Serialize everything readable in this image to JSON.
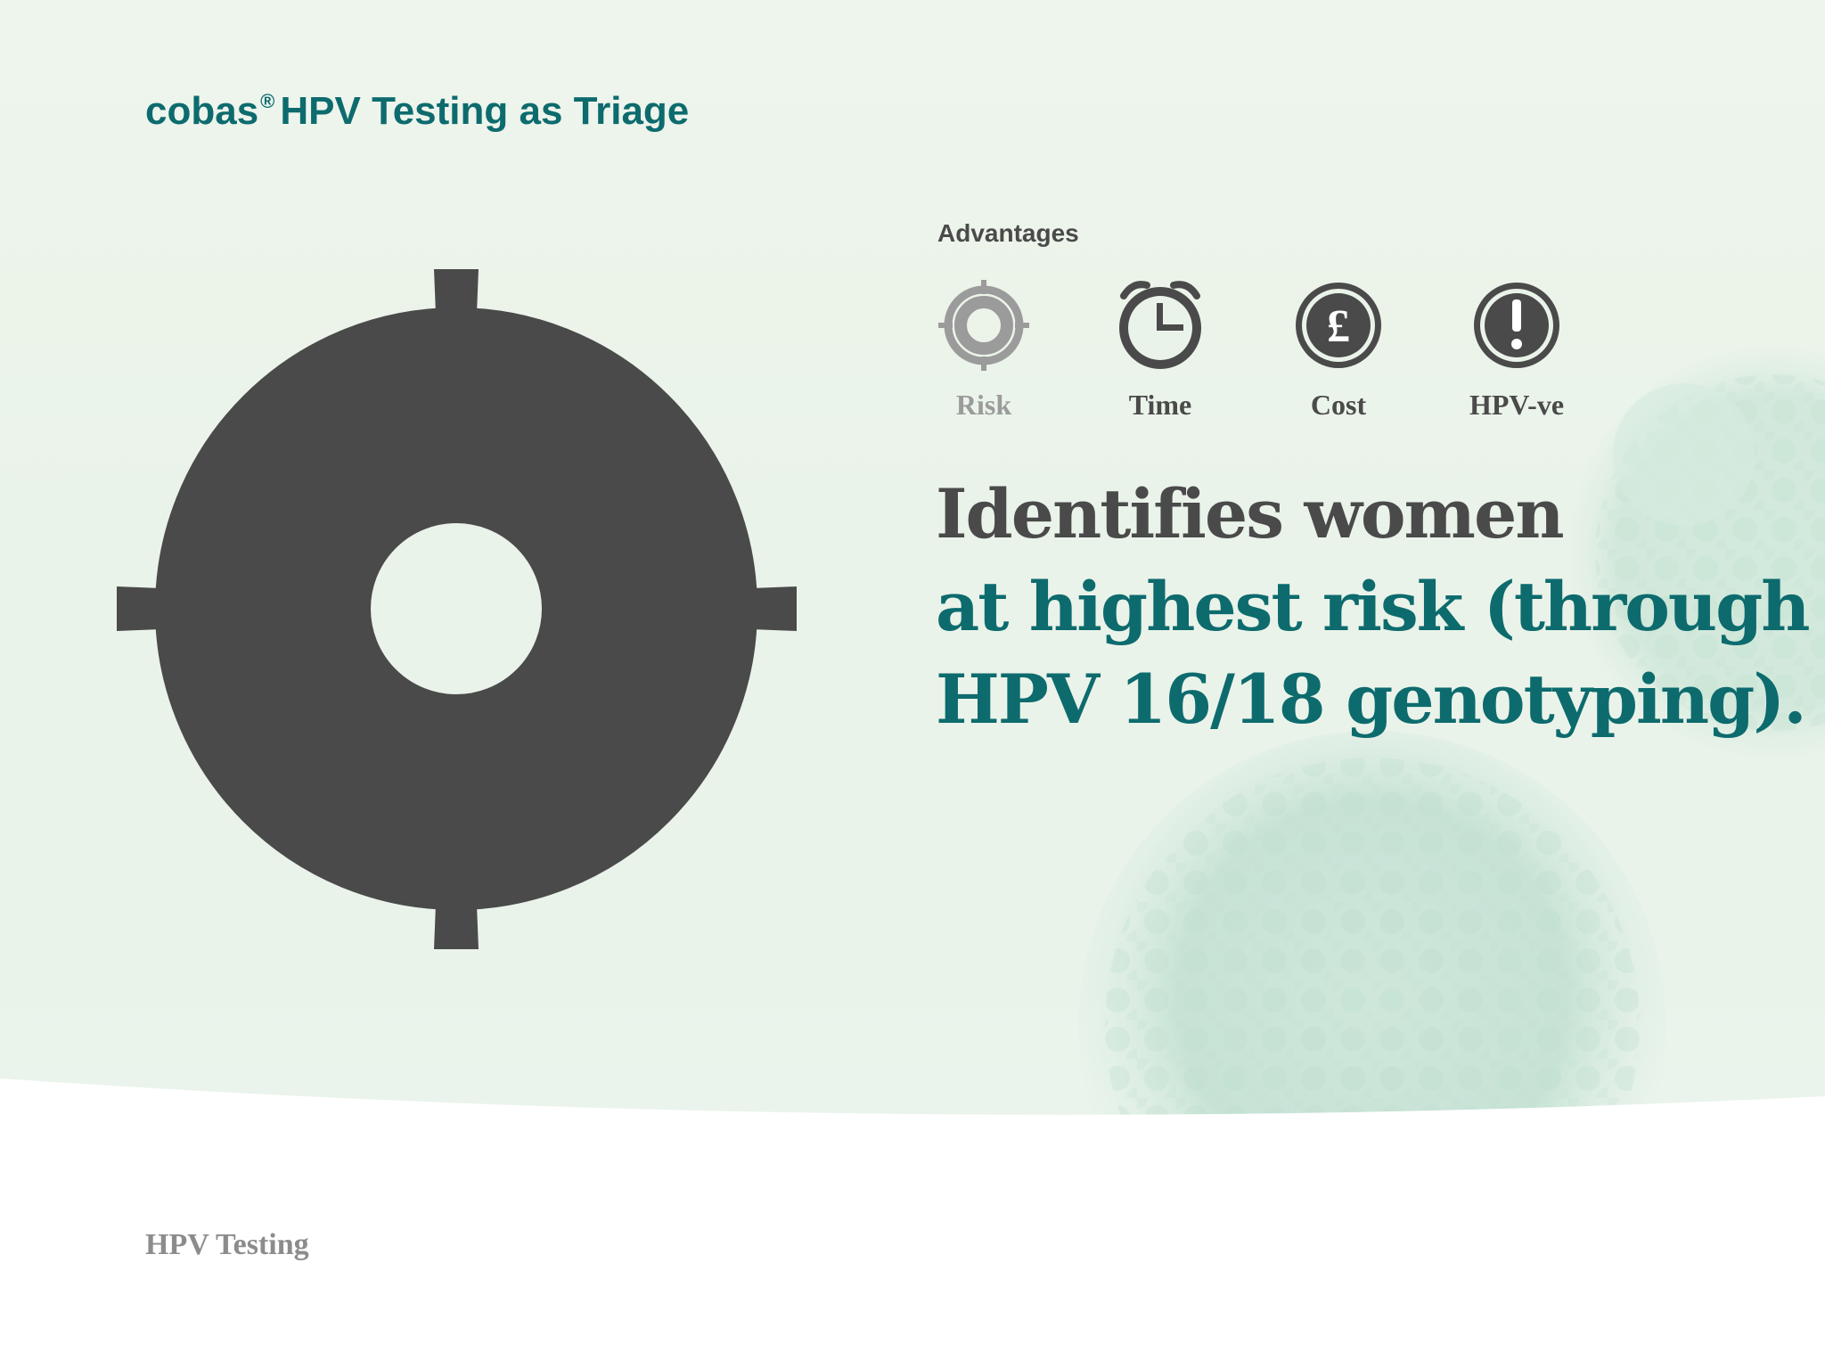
{
  "header": {
    "title_main": "cobas",
    "title_reg": "®",
    "title_rest": "HPV Testing as Triage"
  },
  "advantages": {
    "heading": "Advantages",
    "items": [
      {
        "label": "Risk",
        "icon": "target-icon",
        "active": false
      },
      {
        "label": "Time",
        "icon": "alarm-clock-icon",
        "active": true
      },
      {
        "label": "Cost",
        "icon": "pound-coin-icon",
        "active": true
      },
      {
        "label": "HPV-ve",
        "icon": "exclamation-icon",
        "active": true
      }
    ]
  },
  "headline": {
    "line1": "Identifies women",
    "line2": "at highest risk (through",
    "line3": "HPV 16/18 genotyping)."
  },
  "footer": {
    "label": "HPV Testing"
  },
  "colors": {
    "teal": "#0d6b6e",
    "dark_gray": "#4a4a4a",
    "light_gray": "#9b9b9b",
    "background": "#eaf3e9"
  }
}
